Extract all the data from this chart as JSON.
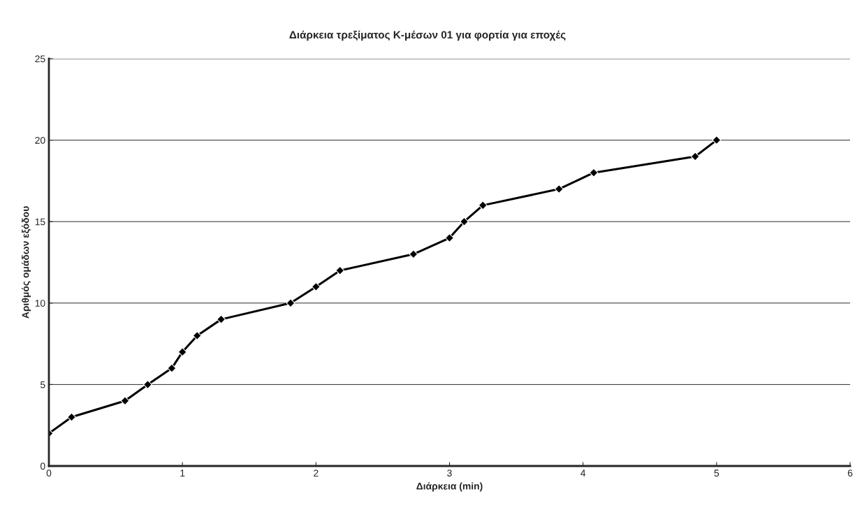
{
  "chart_data": {
    "type": "line",
    "title": "Διάρκεια τρεξίματος K-μέσων 01 για φορτία για εποχές",
    "xlabel": "Διάρκεια (min)",
    "ylabel": "Αριθμός ομάδων εξόδου",
    "x": [
      0,
      0.17,
      0.57,
      0.74,
      0.92,
      1.0,
      1.11,
      1.29,
      1.81,
      2.0,
      2.18,
      2.73,
      3.0,
      3.11,
      3.25,
      3.82,
      4.08,
      4.84,
      5.0
    ],
    "series": [
      {
        "color": "#000000",
        "values": [
          2,
          3,
          4,
          5,
          6,
          7,
          8,
          9,
          10,
          11,
          12,
          13,
          14,
          15,
          16,
          17,
          18,
          19,
          20
        ]
      }
    ],
    "xlim": [
      0,
      6
    ],
    "xticks": [
      0,
      1,
      2,
      3,
      4,
      5,
      6
    ],
    "ylim": [
      0,
      25
    ],
    "yticks": [
      0,
      5,
      10,
      15,
      20,
      25
    ],
    "grid": "y",
    "legend": false,
    "marker": "diamond",
    "line_style": "solid"
  }
}
